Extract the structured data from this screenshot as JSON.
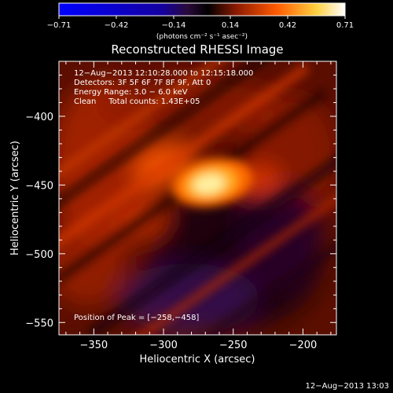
{
  "chart_data": {
    "type": "heatmap",
    "title": "Reconstructed RHESSI Image",
    "xlabel": "Heliocentric X (arcsec)",
    "ylabel": "Heliocentric Y (arcsec)",
    "xlim": [
      -375,
      -176
    ],
    "ylim": [
      -559,
      -360
    ],
    "x_ticks": [
      -350,
      -300,
      -250,
      -200
    ],
    "y_ticks": [
      -400,
      -450,
      -500,
      -550
    ],
    "x_tick_labels": [
      "−350",
      "−300",
      "−250",
      "−200"
    ],
    "y_tick_labels": [
      "−400",
      "−450",
      "−500",
      "−550"
    ],
    "colorbar": {
      "range": [
        -0.71,
        0.71
      ],
      "tick_labels": [
        "−0.71",
        "−0.42",
        "−0.14",
        "0.14",
        "0.42",
        "0.71"
      ],
      "unit_label": "(photons cm⁻² s⁻¹ asec⁻²)",
      "stops": [
        "#0000ff",
        "#000000",
        "#8b1a00",
        "#ff6000",
        "#ffe060",
        "#ffffff"
      ]
    },
    "peak": {
      "x": -258,
      "y": -458,
      "value": 0.71
    },
    "info_lines": [
      "12−Aug−2013 12:10:28.000 to 12:15:18.000",
      "Detectors: 3F 5F 6F 7F 8F 9F, Att 0",
      "Energy Range: 3.0 − 6.0 keV",
      "Clean     Total counts: 1.43E+05"
    ],
    "peak_text": "Position of Peak = [−258,−458]"
  },
  "timestamp": "12−Aug−2013 13:03"
}
